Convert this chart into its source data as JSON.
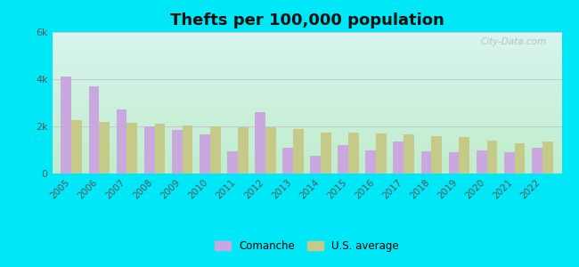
{
  "title": "Thefts per 100,000 population",
  "years": [
    2005,
    2006,
    2007,
    2008,
    2009,
    2010,
    2011,
    2012,
    2013,
    2014,
    2015,
    2016,
    2017,
    2018,
    2019,
    2020,
    2021,
    2022
  ],
  "comanche": [
    4100,
    3700,
    2700,
    2000,
    1850,
    1650,
    950,
    2600,
    1100,
    750,
    1200,
    1000,
    1350,
    950,
    900,
    1000,
    900,
    1100
  ],
  "us_average": [
    2250,
    2200,
    2150,
    2100,
    2050,
    2000,
    1950,
    1950,
    1875,
    1750,
    1750,
    1700,
    1650,
    1600,
    1550,
    1400,
    1300,
    1350
  ],
  "comanche_color": "#c8a8df",
  "us_avg_color": "#c5ca88",
  "background_outer": "#00e8f8",
  "grad_top": "#d8f5ee",
  "grad_bottom": "#c8f0d8",
  "ylim": [
    0,
    6000
  ],
  "yticks": [
    0,
    2000,
    4000,
    6000
  ],
  "ytick_labels": [
    "0",
    "2k",
    "4k",
    "6k"
  ],
  "legend_comanche": "Comanche",
  "legend_us": "U.S. average",
  "title_fontsize": 13,
  "bar_width": 0.38,
  "watermark": "City-Data.com"
}
